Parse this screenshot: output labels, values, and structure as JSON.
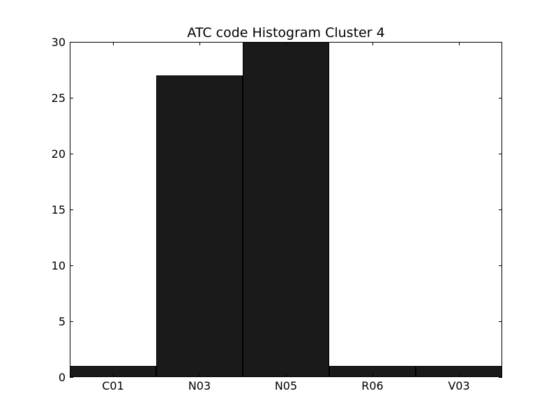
{
  "chart_data": {
    "type": "bar",
    "title": "ATC code Histogram Cluster 4",
    "xlabel": "",
    "ylabel": "",
    "categories": [
      "C01",
      "N03",
      "N05",
      "R06",
      "V03"
    ],
    "values": [
      1,
      27,
      30,
      1,
      1
    ],
    "ylim": [
      0,
      30
    ],
    "yticks": [
      0,
      5,
      10,
      15,
      20,
      25,
      30
    ],
    "grid": false,
    "legend": "none",
    "bar_color": "#1a1a1a",
    "edge_color": "#000000"
  }
}
